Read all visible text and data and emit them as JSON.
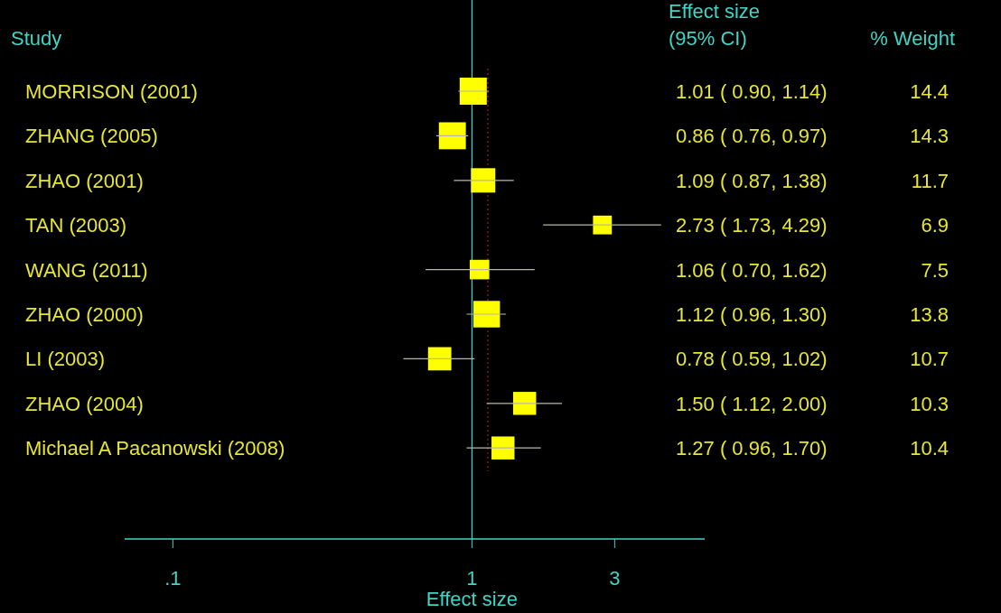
{
  "chart_data": {
    "type": "bubble",
    "orientation": "horizontal",
    "marker": "square",
    "log": "x",
    "ylabel": "Study",
    "xlabel": "Effect size",
    "categories": [
      "MORRISON (2001)",
      "ZHANG (2005)",
      "ZHAO (2001)",
      "TAN (2003)",
      "WANG (2011)",
      "ZHAO (2000)",
      "LI (2003)",
      "ZHAO (2004)",
      "Michael A Pacanowski (2008)"
    ],
    "values": [
      1.01,
      0.86,
      1.09,
      2.73,
      1.06,
      1.12,
      0.78,
      1.5,
      1.27
    ],
    "errors": [
      [
        0.9,
        1.14
      ],
      [
        0.76,
        0.97
      ],
      [
        0.87,
        1.38
      ],
      [
        1.73,
        4.29
      ],
      [
        0.7,
        1.62
      ],
      [
        0.96,
        1.3
      ],
      [
        0.59,
        1.02
      ],
      [
        1.12,
        2.0
      ],
      [
        0.96,
        1.7
      ]
    ],
    "value_labels": [
      "1.01 ( 0.90, 1.14)",
      "0.86 ( 0.76, 0.97)",
      "1.09 ( 0.87, 1.38)",
      "2.73 ( 1.73, 4.29)",
      "1.06 ( 0.70, 1.62)",
      "1.12 ( 0.96, 1.30)",
      "0.78 ( 0.59, 1.02)",
      "1.50 ( 1.12, 2.00)",
      "1.27 ( 0.96, 1.70)"
    ],
    "sizes": [
      1,
      0.99,
      0.81,
      0.48,
      0.52,
      0.96,
      0.74,
      0.72,
      0.72
    ],
    "color": "#ffff00",
    "xlim": [
      0.069,
      6
    ],
    "xticks": [
      {
        "value": 0.1,
        "label": ".1"
      },
      1,
      3
    ],
    "ref_lines": [
      {
        "axis": "x",
        "value": 1,
        "color": "#3fd4c4",
        "line_style": "solid"
      },
      {
        "axis": "x",
        "value": 1.13,
        "color": "#9a2020",
        "line_style": "dotted"
      }
    ],
    "annotations": [
      "Effect size",
      "(95% CI)",
      "% Weight",
      "14.4",
      "14.3",
      "11.7",
      "6.9",
      "7.5",
      "13.8",
      "10.7",
      "10.3",
      "10.4"
    ],
    "grid": false
  }
}
